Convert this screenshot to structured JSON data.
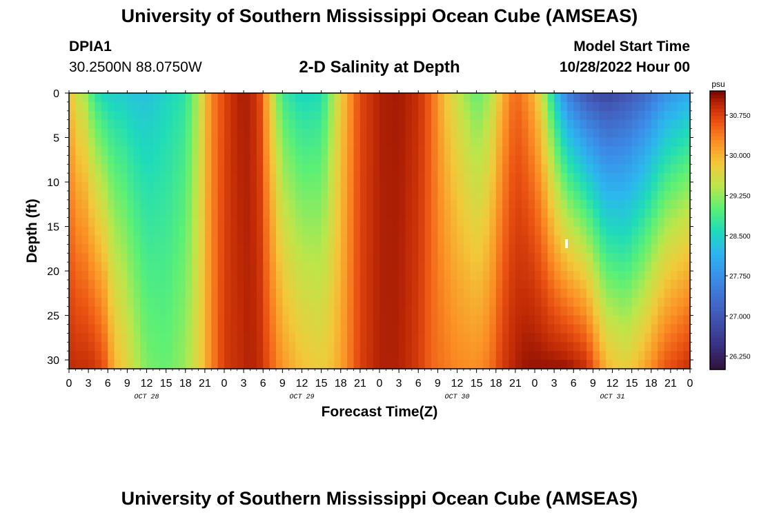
{
  "header": {
    "title": "University of Southern Mississippi Ocean Cube (AMSEAS)",
    "station_id": "DPIA1",
    "coordinates": "30.2500N  88.0750W",
    "subtitle": "2-D Salinity at Depth",
    "model_start_label": "Model Start Time",
    "model_start_value": "10/28/2022 Hour 00"
  },
  "footer": {
    "title": "University of Southern Mississippi Ocean Cube (AMSEAS)"
  },
  "chart_data": {
    "type": "heatmap",
    "title": "2-D Salinity at Depth",
    "xlabel": "Forecast Time(Z)",
    "ylabel": "Depth (ft)",
    "x_range_hours": [
      0,
      96
    ],
    "y_range_ft": [
      0,
      31
    ],
    "x_tick_labels": [
      "0",
      "3",
      "6",
      "9",
      "12",
      "15",
      "18",
      "21",
      "0",
      "3",
      "6",
      "9",
      "12",
      "15",
      "18",
      "21",
      "0",
      "3",
      "6",
      "9",
      "12",
      "15",
      "18",
      "21",
      "0",
      "3",
      "6",
      "9",
      "12",
      "15",
      "18",
      "21",
      "0"
    ],
    "day_labels": [
      {
        "text": "OCT 28",
        "hour": 12
      },
      {
        "text": "OCT 29",
        "hour": 36
      },
      {
        "text": "OCT 30",
        "hour": 60
      },
      {
        "text": "OCT 31",
        "hour": 84
      }
    ],
    "y_ticks": [
      0,
      5,
      10,
      15,
      20,
      25,
      30
    ],
    "colorbar": {
      "unit": "psu",
      "range": [
        26.0,
        31.2
      ],
      "tick_values": [
        26.25,
        27.0,
        27.75,
        28.5,
        29.25,
        30.0,
        30.75
      ],
      "tick_labels": [
        "26.250",
        "27.000",
        "27.750",
        "28.500",
        "29.250",
        "30.000",
        "30.750"
      ]
    },
    "column_profiles": [
      {
        "hour": 0,
        "surface": 30.0,
        "bottom": 30.95
      },
      {
        "hour": 1,
        "surface": 29.5,
        "bottom": 30.9
      },
      {
        "hour": 2.5,
        "surface": 29.3,
        "bottom": 30.9
      },
      {
        "hour": 4,
        "surface": 28.7,
        "bottom": 30.85
      },
      {
        "hour": 5.5,
        "surface": 28.5,
        "bottom": 30.6
      },
      {
        "hour": 7,
        "surface": 28.4,
        "bottom": 30.0
      },
      {
        "hour": 8.5,
        "surface": 28.4,
        "bottom": 29.8
      },
      {
        "hour": 10,
        "surface": 28.3,
        "bottom": 29.5
      },
      {
        "hour": 12,
        "surface": 28.3,
        "bottom": 29.15
      },
      {
        "hour": 15,
        "surface": 28.5,
        "bottom": 29.05
      },
      {
        "hour": 18,
        "surface": 28.7,
        "bottom": 29.3
      },
      {
        "hour": 20,
        "surface": 29.4,
        "bottom": 29.7
      },
      {
        "hour": 22,
        "surface": 30.3,
        "bottom": 30.3
      },
      {
        "hour": 24,
        "surface": 30.7,
        "bottom": 30.8
      },
      {
        "hour": 26,
        "surface": 31.0,
        "bottom": 30.9
      },
      {
        "hour": 28,
        "surface": 31.0,
        "bottom": 31.0
      },
      {
        "hour": 29.5,
        "surface": 30.7,
        "bottom": 30.9
      },
      {
        "hour": 31,
        "surface": 29.8,
        "bottom": 30.6
      },
      {
        "hour": 33,
        "surface": 28.8,
        "bottom": 30.2
      },
      {
        "hour": 36,
        "surface": 28.5,
        "bottom": 29.9
      },
      {
        "hour": 39,
        "surface": 28.6,
        "bottom": 29.8
      },
      {
        "hour": 41,
        "surface": 29.4,
        "bottom": 29.95
      },
      {
        "hour": 43,
        "surface": 30.1,
        "bottom": 30.3
      },
      {
        "hour": 45,
        "surface": 30.7,
        "bottom": 30.75
      },
      {
        "hour": 48,
        "surface": 31.0,
        "bottom": 31.0
      },
      {
        "hour": 51,
        "surface": 31.05,
        "bottom": 31.0
      },
      {
        "hour": 54,
        "surface": 30.9,
        "bottom": 30.8
      },
      {
        "hour": 56,
        "surface": 30.5,
        "bottom": 30.5
      },
      {
        "hour": 58,
        "surface": 29.9,
        "bottom": 30.4
      },
      {
        "hour": 60,
        "surface": 29.5,
        "bottom": 30.3
      },
      {
        "hour": 63,
        "surface": 29.0,
        "bottom": 30.25
      },
      {
        "hour": 65,
        "surface": 29.3,
        "bottom": 30.4
      },
      {
        "hour": 67,
        "surface": 30.0,
        "bottom": 30.8
      },
      {
        "hour": 69,
        "surface": 30.5,
        "bottom": 31.0
      },
      {
        "hour": 71,
        "surface": 30.2,
        "bottom": 31.1
      },
      {
        "hour": 73,
        "surface": 29.6,
        "bottom": 31.1
      },
      {
        "hour": 75,
        "surface": 28.4,
        "bottom": 31.1
      },
      {
        "hour": 77,
        "surface": 27.5,
        "bottom": 31.1
      },
      {
        "hour": 80,
        "surface": 26.9,
        "bottom": 30.9
      },
      {
        "hour": 83,
        "surface": 26.7,
        "bottom": 30.0
      },
      {
        "hour": 86,
        "surface": 26.9,
        "bottom": 29.75
      },
      {
        "hour": 89,
        "surface": 27.2,
        "bottom": 30.1
      },
      {
        "hour": 92,
        "surface": 27.7,
        "bottom": 30.6
      },
      {
        "hour": 96,
        "surface": 28.0,
        "bottom": 30.9
      }
    ]
  }
}
